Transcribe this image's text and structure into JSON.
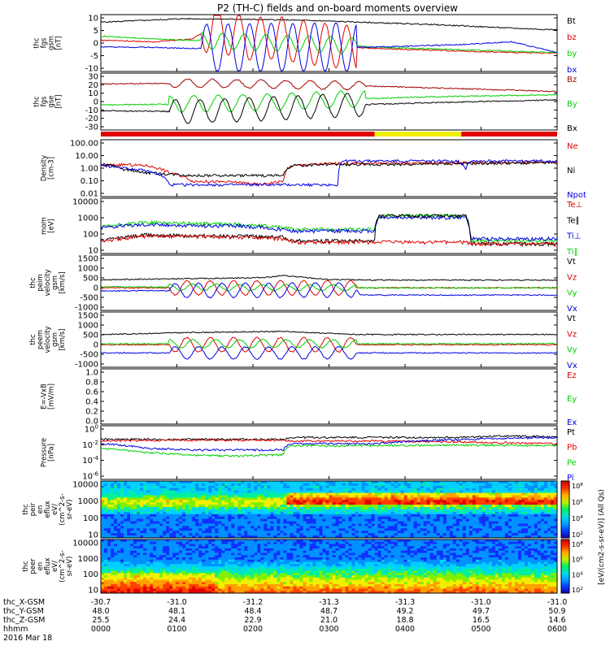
{
  "title": "P2 (TH-C) fields and on-board moments overview",
  "colors": {
    "black": "#000000",
    "red": "#e00000",
    "green": "#00d000",
    "blue": "#0000e0",
    "darkred": "#a00000",
    "yellow": "#f0f000"
  },
  "chart_data": [
    {
      "id": "fgs-gsm",
      "type": "line",
      "ylabel": [
        "thc",
        "fgs",
        "gsm",
        "[nT]"
      ],
      "yticks": [
        "10",
        "5",
        "0",
        "-5",
        "-10"
      ],
      "ylim": [
        -10,
        11
      ],
      "legend": [
        {
          "name": "Bt",
          "color": "black"
        },
        {
          "name": "bz",
          "color": "red"
        },
        {
          "name": "by",
          "color": "green"
        },
        {
          "name": "bx",
          "color": "blue"
        }
      ],
      "series": [
        {
          "name": "Bt",
          "color": "black",
          "x": [
            0,
            0.18,
            0.3,
            0.42,
            0.5,
            0.6,
            0.7,
            0.8,
            0.9,
            1
          ],
          "y": [
            8.2,
            9.5,
            9.3,
            9.0,
            8.6,
            8.0,
            7.5,
            6.8,
            6.0,
            5.4
          ]
        },
        {
          "name": "bz",
          "color": "red",
          "x": [
            0,
            0.12,
            0.2,
            0.25,
            0.28,
            0.33,
            0.38,
            0.5,
            0.6,
            0.7,
            0.8,
            0.9,
            1
          ],
          "y": [
            1.5,
            1,
            2,
            7,
            4,
            2,
            2.5,
            -0.5,
            -1.5,
            -2,
            -2.5,
            -3,
            -3.2
          ]
        },
        {
          "name": "by",
          "color": "green",
          "x": [
            0,
            0.12,
            0.2,
            0.3,
            0.4,
            0.5,
            0.6,
            0.7,
            0.8,
            0.9,
            1
          ],
          "y": [
            3,
            2,
            1.5,
            1,
            0.5,
            0,
            -1,
            -1.5,
            -2,
            -2.5,
            -3
          ]
        },
        {
          "name": "bx",
          "color": "blue",
          "x": [
            0,
            0.1,
            0.2,
            0.5,
            0.6,
            0.7,
            0.8,
            0.85,
            0.9,
            0.95,
            1
          ],
          "y": [
            -1,
            -1,
            -1.5,
            -1,
            -1,
            -0.5,
            0,
            0.5,
            1,
            -1,
            -3
          ]
        }
      ],
      "oscillation": {
        "x_range": [
          0.22,
          0.56
        ],
        "periods": 7.2,
        "amplitude": {
          "bx": 9,
          "bz": 8,
          "by": 3,
          "Bt": 0
        }
      }
    },
    {
      "id": "fgs-gse",
      "type": "line",
      "ylabel": [
        "thc",
        "fgs",
        "gse",
        "[nT]"
      ],
      "yticks": [
        "30",
        "20",
        "10",
        "0",
        "-10",
        "-20",
        "-30"
      ],
      "ylim": [
        -35,
        33
      ],
      "legend": [
        {
          "name": "Bz",
          "color": "darkred"
        },
        {
          "name": "By",
          "color": "green"
        },
        {
          "name": "Bx",
          "color": "black"
        }
      ],
      "series": [
        {
          "name": "Bz",
          "color": "darkred",
          "x": [
            0,
            0.2,
            0.35,
            0.55,
            0.75,
            1
          ],
          "y": [
            20,
            21,
            20,
            18,
            15,
            11
          ]
        },
        {
          "name": "By",
          "color": "green",
          "x": [
            0,
            0.2,
            0.35,
            0.55,
            0.75,
            1
          ],
          "y": [
            -5,
            -4,
            -2,
            2,
            5,
            7
          ]
        },
        {
          "name": "Bx",
          "color": "black",
          "x": [
            0,
            0.2,
            0.35,
            0.55,
            0.75,
            1
          ],
          "y": [
            -12,
            -13,
            -10,
            -5,
            -2,
            1
          ]
        }
      ],
      "oscillation": {
        "x_range": [
          0.15,
          0.58
        ],
        "periods": 8,
        "amplitude": {
          "Bz": 5,
          "By": 10,
          "Bx": 14
        }
      }
    },
    {
      "id": "mode-bar",
      "type": "bar",
      "segments": [
        {
          "from": 0,
          "to": 0.6,
          "color": "red"
        },
        {
          "from": 0.6,
          "to": 0.79,
          "color": "yellow"
        },
        {
          "from": 0.79,
          "to": 1,
          "color": "red"
        }
      ]
    },
    {
      "id": "density",
      "type": "line",
      "log": true,
      "ylabel": [
        "Density",
        "[cm-3]"
      ],
      "yticks": [
        "100.00",
        "10.00",
        "1.00",
        "0.10",
        "0.01"
      ],
      "ylim": [
        0.005,
        300
      ],
      "legend": [
        {
          "name": "Ne",
          "color": "red"
        },
        {
          "name": "Ni",
          "color": "black"
        },
        {
          "name": "Npot",
          "color": "blue"
        }
      ],
      "series": [
        {
          "name": "Ne",
          "color": "red",
          "x": [
            0,
            0.05,
            0.1,
            0.15,
            0.2,
            0.3,
            0.35,
            0.4,
            0.42,
            0.5,
            0.6,
            0.8,
            1
          ],
          "y": [
            2,
            2.5,
            2,
            0.5,
            0.1,
            0.08,
            0.05,
            0.1,
            2,
            3,
            3.2,
            3.5,
            4
          ]
        },
        {
          "name": "Ni",
          "color": "black",
          "x": [
            0,
            0.05,
            0.1,
            0.15,
            0.2,
            0.3,
            0.35,
            0.4,
            0.42,
            0.5,
            0.6,
            0.8,
            1
          ],
          "y": [
            3,
            1,
            0.5,
            0.4,
            0.3,
            0.3,
            0.3,
            0.3,
            2,
            2.5,
            2.5,
            3,
            3.5
          ]
        },
        {
          "name": "Npot",
          "color": "blue",
          "x": [
            0,
            0.15,
            0.2,
            0.3,
            0.4,
            0.52,
            0.53,
            0.6,
            0.78,
            0.8,
            0.81,
            1
          ],
          "y": [
            2,
            0.05,
            0.05,
            0.05,
            0.05,
            0.05,
            5,
            5,
            5,
            1.2,
            5,
            5
          ]
        }
      ]
    },
    {
      "id": "temperature",
      "type": "line",
      "log": true,
      "ylabel": [
        "mom",
        "[eV]"
      ],
      "yticks": [
        "10000",
        "1000",
        "100",
        "10"
      ],
      "ylim": [
        5,
        12000
      ],
      "legend": [
        {
          "name": "Te⊥",
          "color": "red"
        },
        {
          "name": "Te∥",
          "color": "black"
        },
        {
          "name": "Ti⊥",
          "color": "blue"
        },
        {
          "name": "Ti∥",
          "color": "green"
        }
      ],
      "series": [
        {
          "name": "Ti∥",
          "color": "green",
          "x": [
            0,
            0.1,
            0.2,
            0.3,
            0.4,
            0.42,
            0.6,
            0.61,
            0.8,
            0.81,
            1
          ],
          "y": [
            200,
            400,
            350,
            300,
            200,
            150,
            150,
            1000,
            1000,
            30,
            30
          ]
        },
        {
          "name": "Ti⊥",
          "color": "blue",
          "x": [
            0,
            0.1,
            0.2,
            0.3,
            0.4,
            0.42,
            0.6,
            0.61,
            0.8,
            0.81,
            1
          ],
          "y": [
            200,
            300,
            250,
            250,
            150,
            120,
            120,
            800,
            800,
            40,
            40
          ]
        },
        {
          "name": "Te∥",
          "color": "black",
          "x": [
            0,
            0.1,
            0.2,
            0.3,
            0.4,
            0.42,
            0.6,
            0.61,
            0.8,
            0.81,
            1
          ],
          "y": [
            30,
            70,
            60,
            60,
            50,
            30,
            30,
            1000,
            1000,
            20,
            20
          ]
        },
        {
          "name": "Te⊥",
          "color": "red",
          "x": [
            0,
            0.1,
            0.2,
            0.3,
            0.4,
            0.42,
            0.6,
            0.61,
            0.8,
            0.81,
            1
          ],
          "y": [
            25,
            60,
            55,
            50,
            40,
            25,
            25,
            25,
            25,
            20,
            18
          ]
        }
      ]
    },
    {
      "id": "ion-velocity",
      "type": "line",
      "ylabel": [
        "thc",
        "peim",
        "velocity",
        "gsm",
        "[km/s]"
      ],
      "yticks": [
        "1500",
        "1000",
        "500",
        "0",
        "-500",
        "-1000"
      ],
      "ylim": [
        -1100,
        1600
      ],
      "legend": [
        {
          "name": "Vt",
          "color": "black"
        },
        {
          "name": "Vz",
          "color": "red"
        },
        {
          "name": "Vy",
          "color": "green"
        },
        {
          "name": "Vx",
          "color": "blue"
        }
      ],
      "series": [
        {
          "name": "Vt",
          "color": "black",
          "x": [
            0,
            0.2,
            0.35,
            0.4,
            0.5,
            0.55,
            0.6,
            1
          ],
          "y": [
            400,
            450,
            500,
            600,
            400,
            400,
            380,
            380
          ]
        },
        {
          "name": "Vz",
          "color": "red",
          "x": [
            0,
            0.56,
            0.6,
            1
          ],
          "y": [
            0,
            0,
            0,
            0
          ]
        },
        {
          "name": "Vy",
          "color": "green",
          "x": [
            0,
            0.56,
            0.6,
            1
          ],
          "y": [
            50,
            0,
            0,
            0
          ]
        },
        {
          "name": "Vx",
          "color": "blue",
          "x": [
            0,
            0.56,
            0.57,
            1
          ],
          "y": [
            -150,
            -100,
            -350,
            -350
          ]
        }
      ],
      "oscillation": {
        "x_range": [
          0.15,
          0.56
        ],
        "periods": 8,
        "amplitude": {
          "Vz": 350,
          "Vx": 350,
          "Vy": 150,
          "Vt": 0
        }
      }
    },
    {
      "id": "electron-velocity",
      "type": "line",
      "ylabel": [
        "thc",
        "peem",
        "velocity",
        "gsm",
        "[km/s]"
      ],
      "yticks": [
        "1500",
        "1000",
        "500",
        "0",
        "-500",
        "-1000"
      ],
      "ylim": [
        -1100,
        1600
      ],
      "legend": [
        {
          "name": "Vt",
          "color": "black"
        },
        {
          "name": "Vz",
          "color": "red"
        },
        {
          "name": "Vy",
          "color": "green"
        },
        {
          "name": "Vx",
          "color": "blue"
        }
      ],
      "series": [
        {
          "name": "Vt",
          "color": "black",
          "x": [
            0,
            0.2,
            0.4,
            0.56,
            1
          ],
          "y": [
            500,
            600,
            650,
            500,
            500
          ]
        },
        {
          "name": "Vz",
          "color": "red",
          "x": [
            0,
            0.56,
            1
          ],
          "y": [
            0,
            0,
            0
          ]
        },
        {
          "name": "Vy",
          "color": "green",
          "x": [
            0,
            0.56,
            1
          ],
          "y": [
            50,
            50,
            50
          ]
        },
        {
          "name": "Vx",
          "color": "blue",
          "x": [
            0,
            0.56,
            1
          ],
          "y": [
            -400,
            -400,
            -400
          ]
        }
      ],
      "oscillation": {
        "x_range": [
          0.15,
          0.56
        ],
        "periods": 8,
        "amplitude": {
          "Vz": 350,
          "Vx": 300,
          "Vy": 200,
          "Vt": 0
        }
      }
    },
    {
      "id": "efield",
      "type": "line",
      "ylabel": [
        "E=-VxB",
        "[mV/m]"
      ],
      "yticks": [
        "1.0",
        "0.8",
        "0.6",
        "0.4",
        "0.2",
        "0.0"
      ],
      "ylim": [
        0,
        1
      ],
      "legend": [
        {
          "name": "Ez",
          "color": "red"
        },
        {
          "name": "Ey",
          "color": "green"
        },
        {
          "name": "Ex",
          "color": "blue"
        }
      ],
      "series": []
    },
    {
      "id": "pressure",
      "type": "line",
      "log": true,
      "ylabel": [
        "Pressure",
        "[nPa]"
      ],
      "yticks": [
        "10^0",
        "10^-2",
        "10^-4",
        "10^-6"
      ],
      "ylim": [
        1e-06,
        1
      ],
      "legend": [
        {
          "name": "Pt",
          "color": "black"
        },
        {
          "name": "Pb",
          "color": "red"
        },
        {
          "name": "Pe",
          "color": "green"
        },
        {
          "name": "Pi",
          "color": "blue"
        }
      ],
      "series": [
        {
          "name": "Pt",
          "color": "black",
          "x": [
            0,
            0.2,
            0.4,
            0.42,
            0.6,
            0.8,
            0.9,
            1
          ],
          "y": [
            0.03,
            0.03,
            0.03,
            0.05,
            0.05,
            0.05,
            0.08,
            0.05
          ]
        },
        {
          "name": "Pb",
          "color": "red",
          "x": [
            0,
            0.2,
            0.4,
            0.42,
            0.6,
            0.8,
            1
          ],
          "y": [
            0.02,
            0.025,
            0.025,
            0.02,
            0.02,
            0.015,
            0.01
          ]
        },
        {
          "name": "Pe",
          "color": "green",
          "x": [
            0,
            0.1,
            0.2,
            0.3,
            0.4,
            0.42,
            0.6,
            0.8,
            1
          ],
          "y": [
            0.003,
            0.001,
            0.0005,
            0.0004,
            0.0006,
            0.006,
            0.006,
            0.007,
            0.006
          ]
        },
        {
          "name": "Pi",
          "color": "blue",
          "x": [
            0,
            0.1,
            0.2,
            0.3,
            0.4,
            0.42,
            0.6,
            0.8,
            1
          ],
          "y": [
            0.01,
            0.003,
            0.002,
            0.002,
            0.002,
            0.01,
            0.01,
            0.03,
            0.05
          ]
        }
      ]
    },
    {
      "id": "ion-spectrogram",
      "type": "heatmap",
      "ylabel": [
        "thc",
        "peir",
        "en",
        "eflux",
        "eV/",
        "(cm^2-s-",
        "sr-eV)"
      ],
      "yticks": [
        "10000",
        "1000",
        "100",
        "10"
      ]
    },
    {
      "id": "electron-spectrogram",
      "type": "heatmap",
      "ylabel": [
        "thc",
        "peer",
        "en",
        "eflux",
        "eV/",
        "(cm^2-s-",
        "sr-eV)"
      ],
      "yticks": [
        "10000",
        "1000",
        "100",
        "10"
      ]
    }
  ],
  "colorbar": {
    "label": "[eV/(cm^2-s-sr-eV)] (All Qs)",
    "ion_ticks": [
      "10^8",
      "10^6",
      "10^4",
      "10^2"
    ],
    "electron_ticks": [
      "10^8",
      "10^6",
      "10^4",
      "10^2"
    ]
  },
  "xaxis": {
    "row_labels": [
      "thc_X-GSM",
      "thc_Y-GSM",
      "thc_Z-GSM",
      "hhmm",
      "2016 Mar 18"
    ],
    "ticks": [
      {
        "x": 0,
        "values": [
          "-30.7",
          "48.0",
          "25.5",
          "0000"
        ]
      },
      {
        "x": 0.1667,
        "values": [
          "-31.0",
          "48.1",
          "24.4",
          "0100"
        ]
      },
      {
        "x": 0.3333,
        "values": [
          "-31.2",
          "48.4",
          "22.9",
          "0200"
        ]
      },
      {
        "x": 0.5,
        "values": [
          "-31.3",
          "48.7",
          "21.0",
          "0300"
        ]
      },
      {
        "x": 0.6667,
        "values": [
          "-31.3",
          "49.2",
          "18.8",
          "0400"
        ]
      },
      {
        "x": 0.8333,
        "values": [
          "-31.0",
          "49.7",
          "16.5",
          "0500"
        ]
      },
      {
        "x": 1,
        "values": [
          "-31.0",
          "50.9",
          "14.6",
          "0600"
        ]
      }
    ]
  }
}
